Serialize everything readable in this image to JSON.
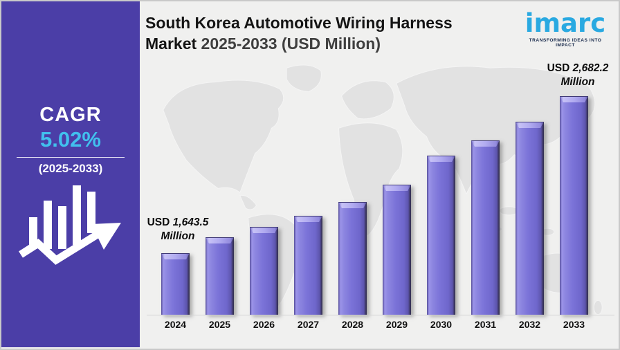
{
  "header": {
    "title_line1": "South Korea Automotive Wiring Harness",
    "title_line2_black": "Market",
    "title_line2_gray": "2025-2033 (USD Million)"
  },
  "logo": {
    "text": "imarc",
    "tagline": "TRANSFORMING IDEAS INTO IMPACT"
  },
  "sidebar": {
    "cagr_label": "CAGR",
    "cagr_value": "5.02%",
    "period": "(2025-2033)"
  },
  "annotations": {
    "start": {
      "prefix": "USD",
      "value": "1,643.5",
      "unit": "Million"
    },
    "end": {
      "prefix": "USD",
      "value": "2,682.2",
      "unit": "Million"
    }
  },
  "colors": {
    "sidebar_bg": "#4b3ea7",
    "accent_cyan": "#41c0ee",
    "logo_blue": "#29a9e1",
    "bar_purple": "#7b73d8",
    "map_gray": "#e2e2e2",
    "background": "#f0f0ef"
  },
  "chart_data": {
    "type": "bar",
    "title": "South Korea Automotive Wiring Harness Market 2025-2033 (USD Million)",
    "unit": "USD Million",
    "categories": [
      "2024",
      "2025",
      "2026",
      "2027",
      "2028",
      "2029",
      "2030",
      "2031",
      "2032",
      "2033"
    ],
    "values": [
      1643.5,
      1748,
      1818,
      1891,
      1982,
      2096,
      2289,
      2389,
      2513,
      2682.2
    ],
    "labeled_points": [
      {
        "category": "2024",
        "label": "USD 1,643.5 Million",
        "value": 1643.5
      },
      {
        "category": "2033",
        "label": "USD 2,682.2 Million",
        "value": 2682.2
      }
    ],
    "xlabel": "",
    "ylabel": "",
    "ylim": [
      1230,
      2800
    ],
    "grid": false,
    "legend": false,
    "cagr": "5.02%",
    "cagr_period": "2025-2033"
  }
}
